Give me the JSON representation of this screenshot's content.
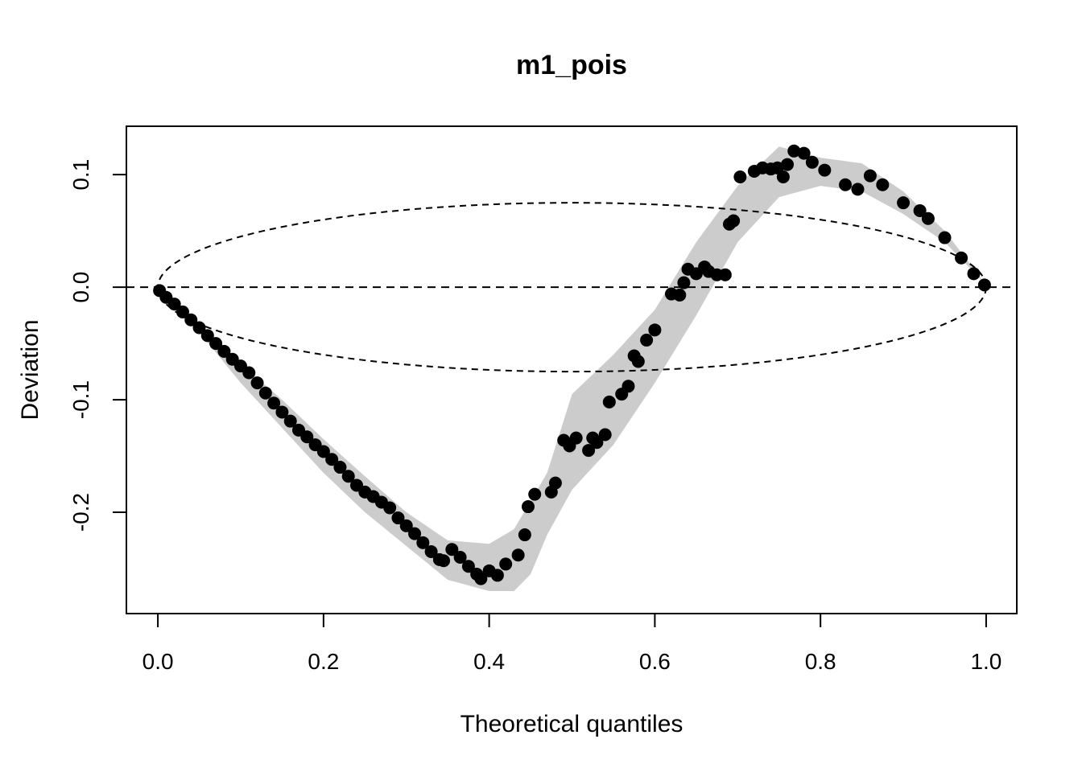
{
  "chart_data": {
    "type": "scatter",
    "title": "m1_pois",
    "xlabel": "Theoretical quantiles",
    "ylabel": "Deviation",
    "xlim": [
      -0.038,
      1.037
    ],
    "ylim": [
      -0.29,
      0.143
    ],
    "xticks": [
      {
        "value": 0,
        "label": "0.0"
      },
      0.2,
      0.4,
      0.6,
      0.8,
      {
        "value": 1,
        "label": "1.0"
      }
    ],
    "yticks": [
      -0.2,
      -0.1,
      {
        "value": 0,
        "label": "0.0"
      },
      0.1
    ],
    "color": "#000000",
    "x": [
      0.002,
      0.01,
      0.02,
      0.03,
      0.04,
      0.05,
      0.06,
      0.07,
      0.08,
      0.09,
      0.1,
      0.11,
      0.12,
      0.13,
      0.14,
      0.15,
      0.16,
      0.17,
      0.18,
      0.19,
      0.2,
      0.21,
      0.22,
      0.23,
      0.24,
      0.25,
      0.26,
      0.27,
      0.28,
      0.29,
      0.3,
      0.31,
      0.32,
      0.33,
      0.34,
      0.345,
      0.355,
      0.365,
      0.375,
      0.385,
      0.39,
      0.4,
      0.41,
      0.42,
      0.435,
      0.443,
      0.447,
      0.455,
      0.475,
      0.48,
      0.49,
      0.497,
      0.505,
      0.52,
      0.525,
      0.53,
      0.54,
      0.545,
      0.56,
      0.568,
      0.575,
      0.58,
      0.59,
      0.6,
      0.62,
      0.63,
      0.635,
      0.64,
      0.65,
      0.66,
      0.665,
      0.675,
      0.685,
      0.69,
      0.695,
      0.703,
      0.72,
      0.73,
      0.74,
      0.748,
      0.755,
      0.76,
      0.768,
      0.78,
      0.79,
      0.805,
      0.83,
      0.845,
      0.86,
      0.875,
      0.9,
      0.92,
      0.93,
      0.95,
      0.97,
      0.985,
      0.998
    ],
    "values": [
      -0.003,
      -0.009,
      -0.015,
      -0.022,
      -0.029,
      -0.036,
      -0.043,
      -0.05,
      -0.057,
      -0.064,
      -0.07,
      -0.076,
      -0.085,
      -0.094,
      -0.103,
      -0.111,
      -0.119,
      -0.127,
      -0.133,
      -0.14,
      -0.146,
      -0.153,
      -0.16,
      -0.168,
      -0.176,
      -0.182,
      -0.186,
      -0.191,
      -0.196,
      -0.205,
      -0.212,
      -0.219,
      -0.227,
      -0.235,
      -0.242,
      -0.243,
      -0.233,
      -0.24,
      -0.248,
      -0.255,
      -0.259,
      -0.252,
      -0.256,
      -0.246,
      -0.238,
      -0.22,
      -0.195,
      -0.184,
      -0.182,
      -0.174,
      -0.136,
      -0.141,
      -0.134,
      -0.145,
      -0.134,
      -0.138,
      -0.131,
      -0.102,
      -0.095,
      -0.088,
      -0.061,
      -0.066,
      -0.047,
      -0.038,
      -0.006,
      -0.007,
      0.004,
      0.016,
      0.012,
      0.018,
      0.014,
      0.011,
      0.011,
      0.056,
      0.059,
      0.098,
      0.103,
      0.106,
      0.105,
      0.106,
      0.098,
      0.109,
      0.121,
      0.119,
      0.111,
      0.104,
      0.091,
      0.087,
      0.099,
      0.091,
      0.075,
      0.068,
      0.061,
      0.044,
      0.026,
      0.012,
      0.002
    ],
    "band": {
      "color": "#cccccc",
      "x": [
        0,
        0.05,
        0.1,
        0.15,
        0.2,
        0.25,
        0.3,
        0.35,
        0.4,
        0.43,
        0.45,
        0.47,
        0.5,
        0.55,
        0.6,
        0.65,
        0.7,
        0.75,
        0.8,
        0.85,
        0.9,
        0.95,
        1
      ],
      "upper": [
        0,
        -0.035,
        -0.068,
        -0.1,
        -0.135,
        -0.168,
        -0.2,
        -0.225,
        -0.228,
        -0.215,
        -0.19,
        -0.165,
        -0.095,
        -0.06,
        -0.02,
        0.04,
        0.09,
        0.125,
        0.115,
        0.11,
        0.085,
        0.05,
        0.002
      ],
      "lower": [
        0,
        -0.04,
        -0.085,
        -0.125,
        -0.165,
        -0.2,
        -0.23,
        -0.26,
        -0.27,
        -0.27,
        -0.255,
        -0.22,
        -0.18,
        -0.14,
        -0.085,
        -0.025,
        0.04,
        0.08,
        0.09,
        0.085,
        0.065,
        0.04,
        0.002
      ]
    },
    "ellipse": {
      "cx": 0.5,
      "cy": 0,
      "rx": 0.5,
      "ry": 0.075
    },
    "hline": 0
  }
}
